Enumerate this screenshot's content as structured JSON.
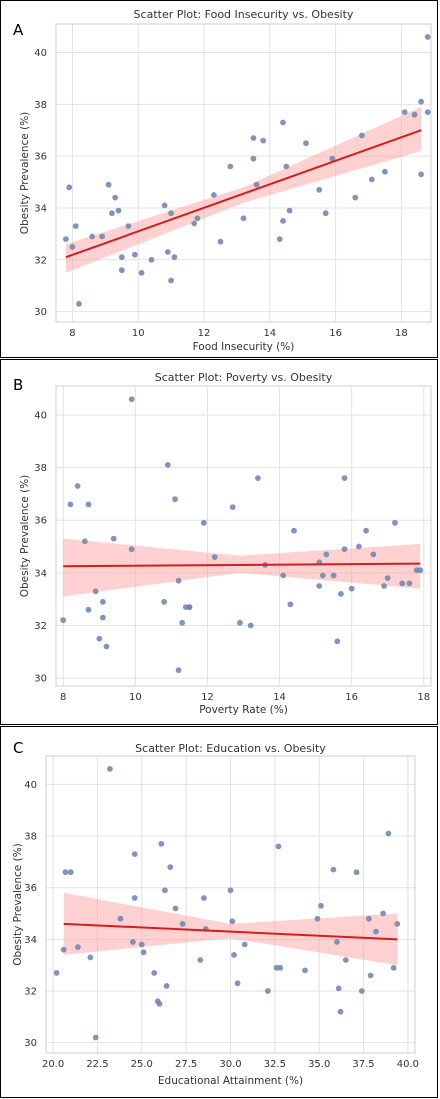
{
  "panels": [
    {
      "letter": "A"
    },
    {
      "letter": "B"
    },
    {
      "letter": "C"
    }
  ],
  "chart_data": [
    {
      "type": "scatter",
      "title": "Scatter Plot: Food Insecurity vs. Obesity",
      "xlabel": "Food Insecurity (%)",
      "ylabel": "Obesity Prevalence (%)",
      "xlim": [
        7.5,
        18.9
      ],
      "ylim": [
        29.6,
        41.1
      ],
      "xticks": [
        8,
        10,
        12,
        14,
        16,
        18
      ],
      "xtick_labels": [
        "8",
        "10",
        "12",
        "14",
        "16",
        "18"
      ],
      "yticks": [
        30,
        32,
        34,
        36,
        38,
        40
      ],
      "ytick_labels": [
        "30",
        "32",
        "34",
        "36",
        "38",
        "40"
      ],
      "grid": true,
      "series": [
        {
          "x": [
            7.8,
            7.9,
            8.0,
            8.1,
            8.2,
            8.6,
            8.9,
            9.1,
            9.2,
            9.3,
            9.4,
            9.5,
            9.5,
            9.7,
            9.9,
            10.1,
            10.4,
            10.8,
            10.9,
            11.0,
            11.0,
            11.1,
            11.7,
            11.8,
            12.3,
            12.5,
            12.8,
            13.2,
            13.5,
            13.5,
            13.6,
            13.8,
            14.3,
            14.4,
            14.4,
            14.5,
            14.6,
            15.1,
            15.5,
            15.7,
            15.9,
            16.6,
            16.8,
            17.1,
            17.5,
            18.1,
            18.4,
            18.6,
            18.6,
            18.8,
            18.8
          ],
          "y": [
            32.8,
            34.8,
            32.5,
            33.3,
            30.3,
            32.9,
            32.9,
            34.9,
            33.8,
            34.4,
            33.9,
            32.1,
            31.6,
            33.3,
            32.2,
            31.5,
            32.0,
            34.1,
            32.3,
            31.2,
            33.8,
            32.1,
            33.4,
            33.6,
            34.5,
            32.7,
            35.6,
            33.6,
            36.7,
            35.9,
            34.9,
            36.6,
            32.8,
            33.5,
            37.3,
            35.6,
            33.9,
            36.5,
            34.7,
            33.8,
            35.9,
            34.4,
            36.8,
            35.1,
            35.4,
            37.7,
            37.6,
            35.3,
            38.1,
            40.6,
            37.7
          ]
        }
      ],
      "fit_line": {
        "x": [
          7.8,
          18.6
        ],
        "y": [
          32.1,
          37.0
        ]
      },
      "confidence_band": {
        "x": [
          7.8,
          13.2,
          18.6
        ],
        "lower": [
          31.5,
          34.2,
          36.2
        ],
        "upper": [
          32.6,
          34.8,
          37.9
        ]
      }
    },
    {
      "type": "scatter",
      "title": "Scatter Plot: Poverty vs. Obesity",
      "xlabel": "Poverty Rate (%)",
      "ylabel": "Obesity Prevalence (%)",
      "xlim": [
        7.8,
        18.2
      ],
      "ylim": [
        29.7,
        41.1
      ],
      "xticks": [
        8,
        10,
        12,
        14,
        16,
        18
      ],
      "xtick_labels": [
        "8",
        "10",
        "12",
        "14",
        "16",
        "18"
      ],
      "yticks": [
        30,
        32,
        34,
        36,
        38,
        40
      ],
      "ytick_labels": [
        "30",
        "32",
        "34",
        "36",
        "38",
        "40"
      ],
      "grid": true,
      "series": [
        {
          "x": [
            8.0,
            8.2,
            8.4,
            8.6,
            8.7,
            8.7,
            8.9,
            9.0,
            9.1,
            9.1,
            9.2,
            9.4,
            9.9,
            9.9,
            10.8,
            10.9,
            11.1,
            11.2,
            11.2,
            11.3,
            11.4,
            11.5,
            11.5,
            11.9,
            12.2,
            12.7,
            12.9,
            13.2,
            13.4,
            13.6,
            14.1,
            14.3,
            14.4,
            15.1,
            15.1,
            15.2,
            15.3,
            15.5,
            15.6,
            15.7,
            15.8,
            15.8,
            16.0,
            16.2,
            16.4,
            16.6,
            16.9,
            17.0,
            17.2,
            17.4,
            17.6,
            17.8,
            17.9
          ],
          "y": [
            32.2,
            36.6,
            37.3,
            35.2,
            36.6,
            32.6,
            33.3,
            31.5,
            32.9,
            32.3,
            31.2,
            35.3,
            34.9,
            40.6,
            32.9,
            38.1,
            36.8,
            33.7,
            30.3,
            32.1,
            32.7,
            32.7,
            32.7,
            35.9,
            34.6,
            36.5,
            32.1,
            32.0,
            37.6,
            34.3,
            33.9,
            32.8,
            35.6,
            33.5,
            34.4,
            33.9,
            34.7,
            33.9,
            31.4,
            33.2,
            37.6,
            34.9,
            33.4,
            35.0,
            35.6,
            34.7,
            33.5,
            33.8,
            35.9,
            33.6,
            33.6,
            34.1,
            34.1
          ]
        }
      ],
      "fit_line": {
        "x": [
          8.0,
          17.9
        ],
        "y": [
          34.25,
          34.35
        ]
      },
      "confidence_band": {
        "x": [
          8.0,
          12.9,
          17.9
        ],
        "lower": [
          33.1,
          34.0,
          33.4
        ],
        "upper": [
          35.3,
          34.65,
          35.1
        ]
      }
    },
    {
      "type": "scatter",
      "title": "Scatter Plot: Education vs. Obesity",
      "xlabel": "Educational Attainment (%)",
      "ylabel": "Obesity Prevalence (%)",
      "xlim": [
        19.6,
        40.4
      ],
      "ylim": [
        29.6,
        41.1
      ],
      "xticks": [
        20.0,
        22.5,
        25.0,
        27.5,
        30.0,
        32.5,
        35.0,
        37.5,
        40.0
      ],
      "xtick_labels": [
        "20.0",
        "22.5",
        "25.0",
        "27.5",
        "30.0",
        "32.5",
        "35.0",
        "37.5",
        "40.0"
      ],
      "yticks": [
        30,
        32,
        34,
        36,
        38,
        40
      ],
      "ytick_labels": [
        "30",
        "32",
        "34",
        "36",
        "38",
        "40"
      ],
      "grid": true,
      "series": [
        {
          "x": [
            20.2,
            20.6,
            20.7,
            21.0,
            21.4,
            22.1,
            22.4,
            23.2,
            23.8,
            24.5,
            24.6,
            24.6,
            25.0,
            25.1,
            25.7,
            25.9,
            26.0,
            26.1,
            26.3,
            26.4,
            26.6,
            26.9,
            27.3,
            28.3,
            28.5,
            28.6,
            30.0,
            30.1,
            30.2,
            30.4,
            30.8,
            32.1,
            32.6,
            32.7,
            32.8,
            34.2,
            34.9,
            35.1,
            35.8,
            36.0,
            36.1,
            36.2,
            36.5,
            37.1,
            37.4,
            37.8,
            37.9,
            38.2,
            38.6,
            38.9,
            39.2,
            39.4
          ],
          "y": [
            32.7,
            33.6,
            36.6,
            36.6,
            33.7,
            33.3,
            30.2,
            40.6,
            34.8,
            33.9,
            35.6,
            37.3,
            33.8,
            33.5,
            32.7,
            31.6,
            31.5,
            37.7,
            35.9,
            32.2,
            36.8,
            35.2,
            34.6,
            33.2,
            35.6,
            34.4,
            35.9,
            34.7,
            33.4,
            32.3,
            33.8,
            32.0,
            32.9,
            37.6,
            32.9,
            32.8,
            34.8,
            35.3,
            36.7,
            33.9,
            32.1,
            31.2,
            33.2,
            36.6,
            32.0,
            34.8,
            32.6,
            34.3,
            35.0,
            38.1,
            32.9,
            34.6
          ]
        }
      ],
      "fit_line": {
        "x": [
          20.6,
          39.4
        ],
        "y": [
          34.6,
          34.0
        ]
      },
      "confidence_band": {
        "x": [
          20.6,
          30.0,
          39.4
        ],
        "lower": [
          33.4,
          34.05,
          33.0
        ],
        "upper": [
          35.8,
          34.6,
          35.0
        ]
      }
    }
  ]
}
